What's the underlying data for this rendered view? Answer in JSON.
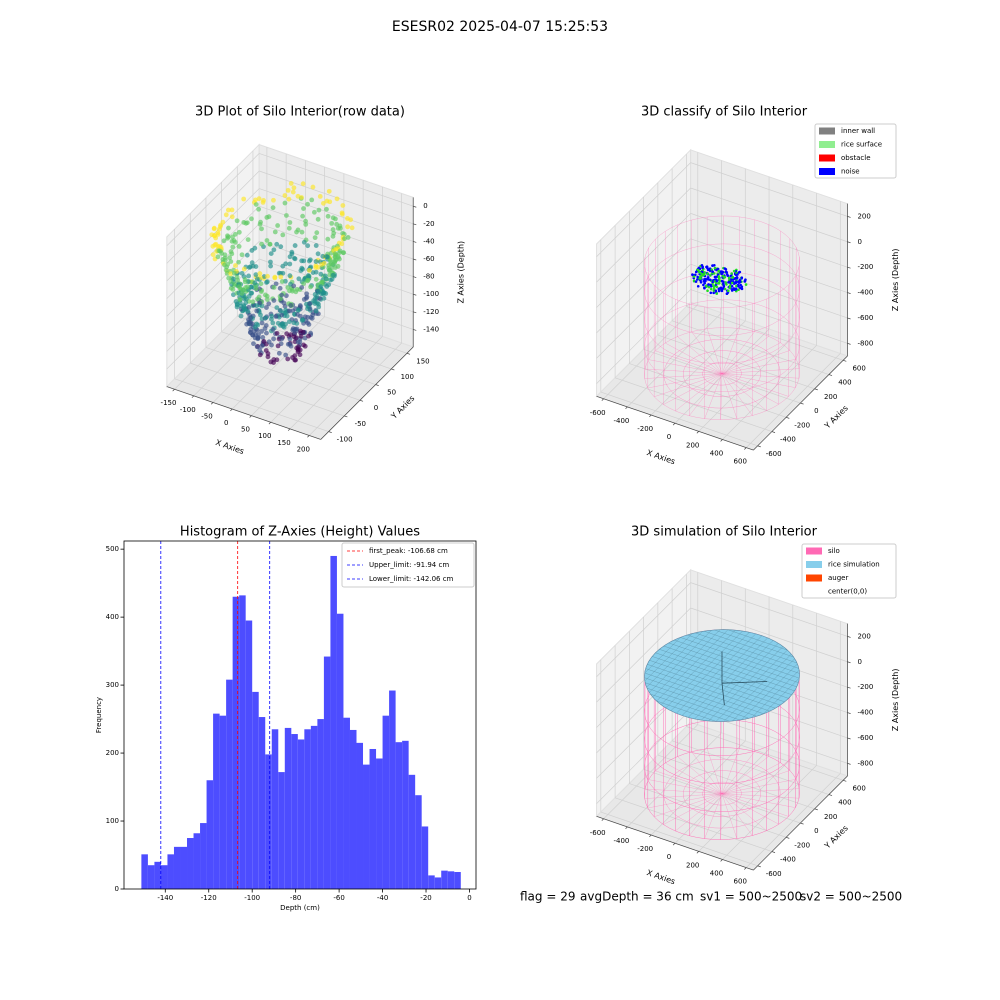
{
  "title": "ESESR02 2025-04-07 15:25:53",
  "chart_data": [
    {
      "type": "scatter3d",
      "title": "3D Plot of Silo Interior(row data)",
      "xlabel": "X Axies",
      "ylabel": "Y Axies",
      "zlabel": "Z Axies (Depth)",
      "xlim": [
        -170,
        230
      ],
      "ylim": [
        -125,
        170
      ],
      "zlim": [
        -160,
        10
      ],
      "xticks": [
        -150,
        -100,
        -50,
        0,
        50,
        100,
        150,
        200
      ],
      "yticks": [
        -100,
        -50,
        0,
        50,
        100,
        150
      ],
      "zticks": [
        -140,
        -120,
        -100,
        -80,
        -60,
        -40,
        -20,
        0
      ]
    },
    {
      "type": "scatter3d",
      "title": "3D classify of Silo Interior",
      "xlabel": "X Axies",
      "ylabel": "Y Axies",
      "zlabel": "Z Axies (Depth)",
      "xlim": [
        -660,
        660
      ],
      "ylim": [
        -660,
        660
      ],
      "zlim": [
        -900,
        300
      ],
      "xticks": [
        -600,
        -400,
        -200,
        0,
        200,
        400,
        600
      ],
      "yticks": [
        -600,
        -400,
        -200,
        0,
        200,
        400,
        600
      ],
      "zticks": [
        -800,
        -600,
        -400,
        -200,
        0,
        200
      ],
      "legend": "upper right",
      "series": [
        {
          "name": "inner wall",
          "color": "#808080"
        },
        {
          "name": "rice surface",
          "color": "#90ee90"
        },
        {
          "name": "obstacle",
          "color": "#ff0000"
        },
        {
          "name": "noise",
          "color": "#0000ff"
        }
      ]
    },
    {
      "type": "histogram",
      "title": "Histogram of Z-Axies (Height) Values",
      "xlabel": "Depth (cm)",
      "ylabel": "Frequency",
      "bins": [
        -151,
        -148,
        -145,
        -142,
        -139,
        -136,
        -133,
        -130,
        -127,
        -124,
        -121,
        -118,
        -115,
        -112,
        -109,
        -106,
        -103,
        -100,
        -97,
        -94,
        -91,
        -88,
        -85,
        -82,
        -79,
        -76,
        -73,
        -70,
        -67,
        -64,
        -61,
        -58,
        -55,
        -52,
        -49,
        -46,
        -43,
        -40,
        -37,
        -34,
        -31,
        -28,
        -25,
        -22,
        -19,
        -16,
        -13,
        -10,
        -7,
        -4
      ],
      "values": [
        51,
        35,
        40,
        35,
        51,
        62,
        62,
        75,
        82,
        97,
        160,
        258,
        255,
        308,
        430,
        432,
        395,
        290,
        253,
        198,
        235,
        172,
        237,
        228,
        220,
        235,
        240,
        250,
        342,
        490,
        405,
        252,
        234,
        215,
        183,
        206,
        192,
        255,
        292,
        216,
        218,
        168,
        138,
        92,
        20,
        17,
        27,
        26,
        25
      ],
      "color": "#4d4dff",
      "xlim": [
        -159,
        3
      ],
      "ylim": [
        0,
        512
      ],
      "xticks": [
        -140,
        -120,
        -100,
        -80,
        -60,
        -40,
        -20,
        0
      ],
      "yticks": [
        0,
        100,
        200,
        300,
        400,
        500
      ],
      "legend": "upper right",
      "vlines": [
        {
          "name": "first_peak: -106.68 cm",
          "value": -106.68,
          "color": "#ff0000"
        },
        {
          "name": "Upper_limit: -91.94 cm",
          "value": -91.94,
          "color": "#0000ff"
        },
        {
          "name": "Lower_limit: -142.06 cm",
          "value": -142.06,
          "color": "#0000ff"
        }
      ]
    },
    {
      "type": "surface3d",
      "title": "3D simulation of Silo Interior",
      "xlabel": "X Axies",
      "ylabel": "Y Axies",
      "zlabel": "Z Axies (Depth)",
      "xlim": [
        -660,
        660
      ],
      "ylim": [
        -660,
        660
      ],
      "zlim": [
        -900,
        300
      ],
      "xticks": [
        -600,
        -400,
        -200,
        0,
        200,
        400,
        600
      ],
      "yticks": [
        -600,
        -400,
        -200,
        0,
        200,
        400,
        600
      ],
      "zticks": [
        -800,
        -600,
        -400,
        -200,
        0,
        200
      ],
      "legend": "upper right",
      "series": [
        {
          "name": "silo",
          "color": "#ff69b4"
        },
        {
          "name": "rice simulation",
          "color": "#87ceeb"
        },
        {
          "name": "auger",
          "color": "#ff4500"
        },
        {
          "name": "center(0,0)",
          "color": "#ffffff"
        }
      ]
    }
  ],
  "status": [
    "flag = 29",
    "avgDepth = 36 cm",
    "sv1 = 500~2500",
    "sv2 = 500~2500"
  ]
}
